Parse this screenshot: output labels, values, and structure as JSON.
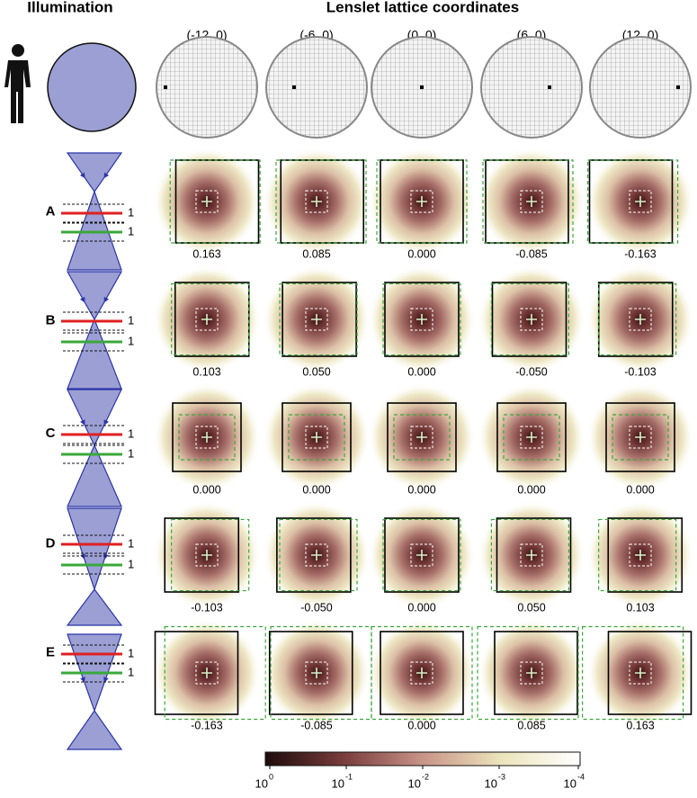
{
  "header": {
    "illumination": "Illumination",
    "title": "Lenslet lattice coordinates"
  },
  "columns": [
    "(-12, 0)",
    "(-6, 0)",
    "(0, 0)",
    "(6, 0)",
    "(12, 0)"
  ],
  "rows": [
    {
      "label": "A",
      "planes": [
        "1",
        "1"
      ],
      "values": [
        "0.163",
        "0.085",
        "0.000",
        "-0.085",
        "-0.163"
      ]
    },
    {
      "label": "B",
      "planes": [
        "1",
        "1"
      ],
      "values": [
        "0.103",
        "0.050",
        "0.000",
        "-0.050",
        "-0.103"
      ]
    },
    {
      "label": "C",
      "planes": [
        "1",
        "1"
      ],
      "values": [
        "0.000",
        "0.000",
        "0.000",
        "0.000",
        "0.000"
      ]
    },
    {
      "label": "D",
      "planes": [
        "1",
        "1"
      ],
      "values": [
        "-0.103",
        "-0.050",
        "0.000",
        "0.050",
        "0.103"
      ]
    },
    {
      "label": "E",
      "planes": [
        "1",
        "1"
      ],
      "values": [
        "-0.163",
        "-0.085",
        "0.000",
        "0.085",
        "0.163"
      ]
    }
  ],
  "colorbar": {
    "ticks": [
      {
        "base": "10",
        "exponent": "0"
      },
      {
        "base": "10",
        "exponent": "-1"
      },
      {
        "base": "10",
        "exponent": "-2"
      },
      {
        "base": "10",
        "exponent": "-3"
      },
      {
        "base": "10",
        "exponent": "-4"
      }
    ]
  }
}
